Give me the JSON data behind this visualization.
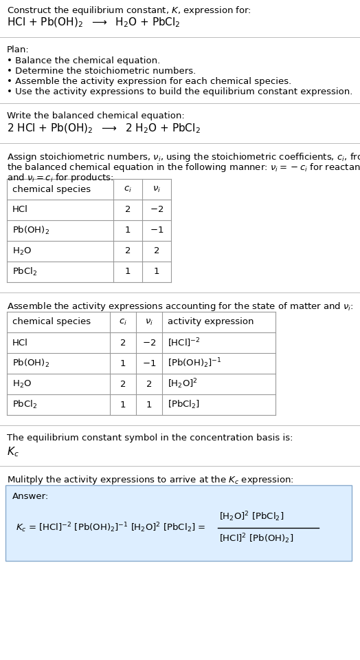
{
  "title_line1": "Construct the equilibrium constant, $K$, expression for:",
  "title_line2": "HCl + Pb(OH)$_2$  $\\longrightarrow$  H$_2$O + PbCl$_2$",
  "plan_header": "Plan:",
  "plan_bullets": [
    "• Balance the chemical equation.",
    "• Determine the stoichiometric numbers.",
    "• Assemble the activity expression for each chemical species.",
    "• Use the activity expressions to build the equilibrium constant expression."
  ],
  "balanced_header": "Write the balanced chemical equation:",
  "balanced_eq": "2 HCl + Pb(OH)$_2$  $\\longrightarrow$  2 H$_2$O + PbCl$_2$",
  "stoich_intro1": "Assign stoichiometric numbers, $\\nu_i$, using the stoichiometric coefficients, $c_i$, from",
  "stoich_intro2": "the balanced chemical equation in the following manner: $\\nu_i = -c_i$ for reactants",
  "stoich_intro3": "and $\\nu_i = c_i$ for products:",
  "table1_headers": [
    "chemical species",
    "$c_i$",
    "$\\nu_i$"
  ],
  "table1_rows": [
    [
      "HCl",
      "2",
      "$-2$"
    ],
    [
      "Pb(OH)$_2$",
      "1",
      "$-1$"
    ],
    [
      "H$_2$O",
      "2",
      "2"
    ],
    [
      "PbCl$_2$",
      "1",
      "1"
    ]
  ],
  "activity_intro": "Assemble the activity expressions accounting for the state of matter and $\\nu_i$:",
  "table2_headers": [
    "chemical species",
    "$c_i$",
    "$\\nu_i$",
    "activity expression"
  ],
  "table2_rows": [
    [
      "HCl",
      "2",
      "$-2$",
      "[HCl]$^{-2}$"
    ],
    [
      "Pb(OH)$_2$",
      "1",
      "$-1$",
      "[Pb(OH)$_2$]$^{-1}$"
    ],
    [
      "H$_2$O",
      "2",
      "2",
      "[H$_2$O]$^2$"
    ],
    [
      "PbCl$_2$",
      "1",
      "1",
      "[PbCl$_2$]"
    ]
  ],
  "kc_symbol_text": "The equilibrium constant symbol in the concentration basis is:",
  "kc_symbol": "$K_c$",
  "multiply_text": "Mulitply the activity expressions to arrive at the $K_c$ expression:",
  "answer_label": "Answer:",
  "kc_lhs": "$K_c$ = [HCl]$^{-2}$ [Pb(OH)$_2$]$^{-1}$ [H$_2$O]$^2$ [PbCl$_2$] =",
  "kc_num": "[H$_2$O]$^2$ [PbCl$_2$]",
  "kc_den": "[HCl]$^2$ [Pb(OH)$_2$]",
  "bg_color": "#ffffff",
  "answer_bg": "#ddeeff",
  "answer_border": "#88aacc",
  "text_color": "#000000",
  "sep_color": "#bbbbbb",
  "fs": 9.5,
  "fs_eq": 11.0
}
